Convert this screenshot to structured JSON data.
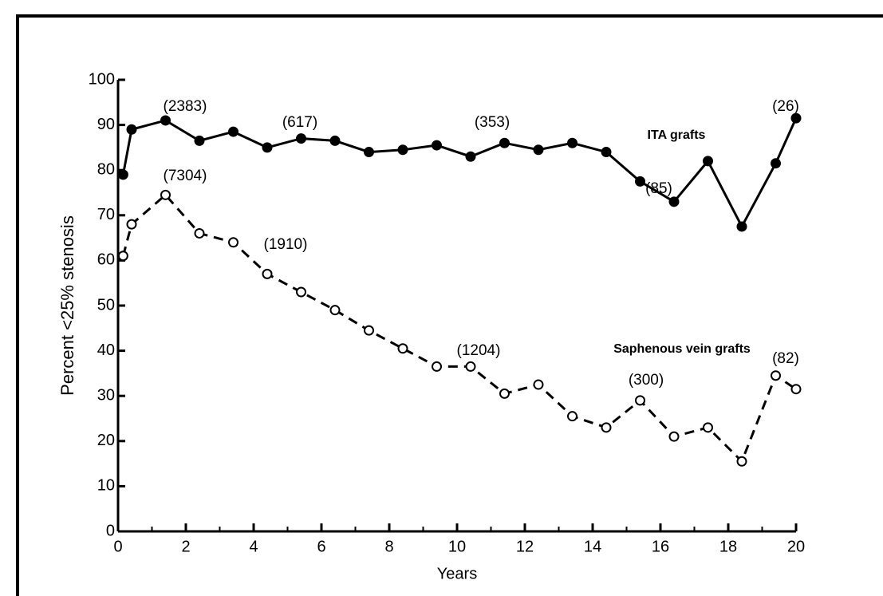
{
  "chart_data": {
    "type": "line",
    "xlabel": "Years",
    "ylabel": "Percent <25% stenosis",
    "xlim": [
      0,
      20
    ],
    "ylim": [
      0,
      100
    ],
    "xticks": [
      0,
      2,
      4,
      6,
      8,
      10,
      12,
      14,
      16,
      18,
      20
    ],
    "xticks_minor": [
      1,
      3,
      5,
      7,
      9,
      11,
      13,
      15,
      17,
      19
    ],
    "yticks": [
      0,
      10,
      20,
      30,
      40,
      50,
      60,
      70,
      80,
      90,
      100
    ],
    "series": [
      {
        "name": "ITA grafts",
        "color": "#000000",
        "style": "solid",
        "marker": "filled",
        "x": [
          0.15,
          0.4,
          1.4,
          2.4,
          3.4,
          4.4,
          5.4,
          6.4,
          7.4,
          8.4,
          9.4,
          10.4,
          11.4,
          12.4,
          13.4,
          14.4,
          15.4,
          16.4,
          17.4,
          18.4,
          19.4,
          20
        ],
        "values": [
          79,
          89,
          91,
          86.5,
          88.5,
          85,
          87,
          86.5,
          84,
          84.5,
          85.5,
          83,
          86,
          84.5,
          86,
          84,
          77.5,
          73,
          82,
          67.5,
          81.5,
          91.5
        ]
      },
      {
        "name": "Saphenous vein grafts",
        "color": "#000000",
        "style": "dashed",
        "marker": "open",
        "x": [
          0.15,
          0.4,
          1.4,
          2.4,
          3.4,
          4.4,
          5.4,
          6.4,
          7.4,
          8.4,
          9.4,
          10.4,
          11.4,
          12.4,
          13.4,
          14.4,
          15.4,
          16.4,
          17.4,
          18.4,
          19.4,
          20
        ],
        "values": [
          61,
          68,
          74.5,
          66,
          64,
          57,
          53,
          49,
          44.5,
          40.5,
          36.5,
          36.5,
          30.5,
          32.5,
          25.5,
          23,
          29,
          21,
          23,
          15.5,
          34.5,
          31.5
        ]
      }
    ],
    "annotations": [
      "(2383)",
      "(617)",
      "(353)",
      "(26)",
      "(85)",
      "(7304)",
      "(1910)",
      "(1204)",
      "(300)",
      "(82)"
    ]
  }
}
